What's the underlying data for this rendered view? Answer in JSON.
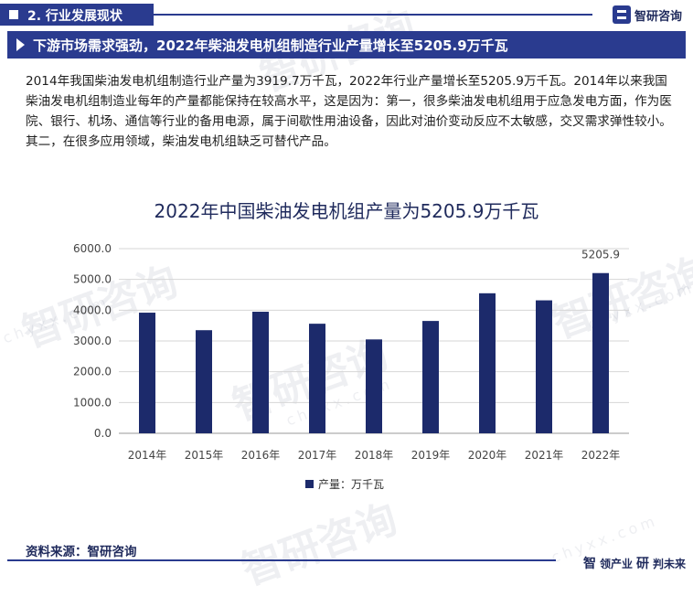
{
  "section": {
    "title": "2. 行业发展现状"
  },
  "brand": {
    "name": "智研咨询",
    "watermark_text": "智研咨询",
    "watermark_url": "chyxx.com"
  },
  "headline": "下游市场需求强劲，2022年柴油发电机组制造行业产量增长至5205.9万千瓦",
  "paragraph": "2014年我国柴油发电机组制造行业产量为3919.7万千瓦，2022年行业产量增长至5205.9万千瓦。2014年以来我国柴油发电机组制造业每年的产量都能保持在较高水平，这是因为：第一，很多柴油发电机组用于应急发电方面，作为医院、银行、机场、通信等行业的备用电源，属于间歇性用油设备，因此对油价变动反应不太敏感，交叉需求弹性较小。其二，在很多应用领域，柴油发电机组缺乏可替代产品。",
  "footer": {
    "source": "资料来源：智研咨询",
    "brand_big": "智",
    "brand_a": "领产业",
    "brand_b_big": "研",
    "brand_b": "判未来"
  },
  "colors": {
    "bar": "#1c2a6b",
    "accent": "#2a3b8f",
    "title": "#1f2a5c"
  },
  "chart_data": {
    "type": "bar",
    "title": "2022年中国柴油发电机组产量为5205.9万千瓦",
    "categories": [
      "2014年",
      "2015年",
      "2016年",
      "2017年",
      "2018年",
      "2019年",
      "2020年",
      "2021年",
      "2022年"
    ],
    "series": [
      {
        "name": "产量：万千瓦",
        "values": [
          3919.7,
          3350,
          3950,
          3560,
          3050,
          3650,
          4550,
          4320,
          5205.9
        ]
      }
    ],
    "data_labels": {
      "2022年": "5205.9"
    },
    "yticks": [
      "0.0",
      "1000.0",
      "2000.0",
      "3000.0",
      "4000.0",
      "5000.0",
      "6000.0"
    ],
    "ylim": [
      0,
      6000
    ],
    "grid": "horizontal",
    "legend": "bottom-center"
  }
}
